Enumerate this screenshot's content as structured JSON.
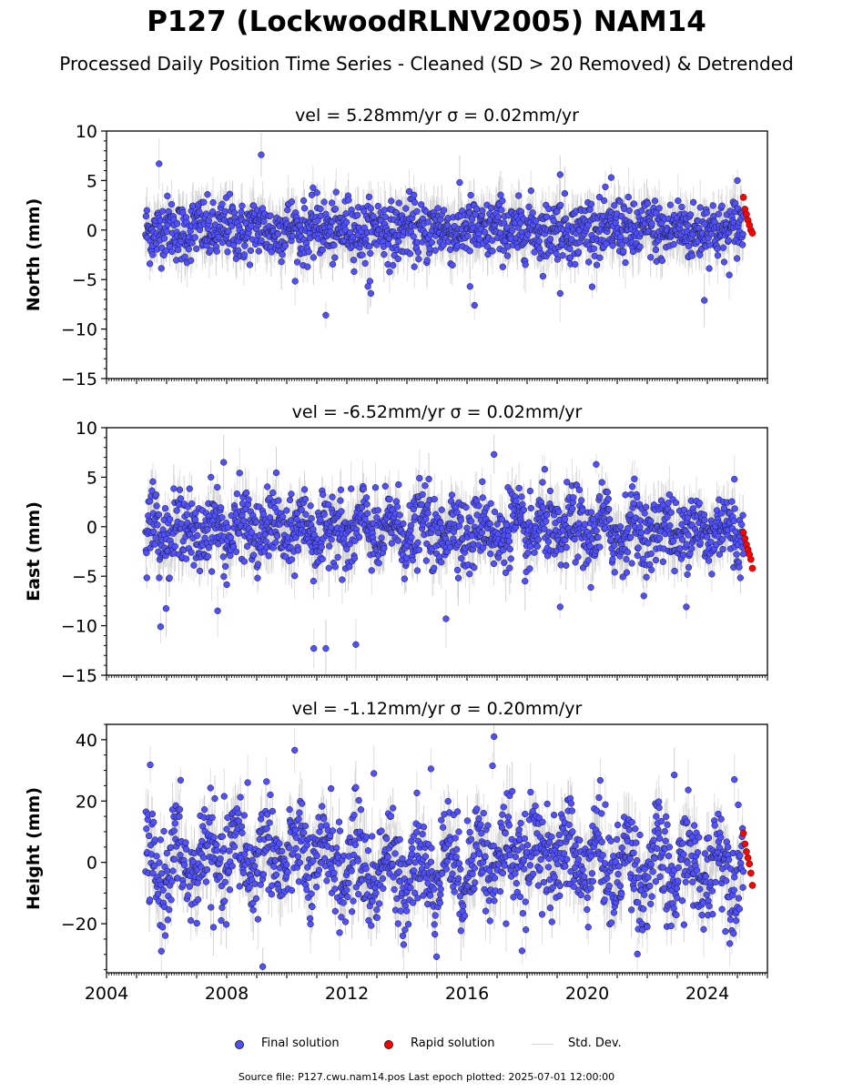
{
  "title": "P127 (LockwoodRLNV2005) NAM14",
  "subtitle": "Processed Daily Position Time Series - Cleaned (SD > 20 Removed) & Detrended",
  "legend": {
    "final": "Final solution",
    "rapid": "Rapid solution",
    "std": "Std. Dev."
  },
  "source": "Source file: P127.cwu.nam14.pos  Last epoch plotted: 2025-07-01 12:00:00",
  "colors": {
    "final": "#5050ff",
    "rapid": "#ff0000",
    "std": "#d3d3d3"
  },
  "chart_data": [
    {
      "type": "scatter",
      "title": "vel = 5.28mm/yr   σ = 0.02mm/yr",
      "ylabel": "North (mm)",
      "xlim": [
        2004.0,
        2026.0
      ],
      "ylim": [
        -15,
        10
      ],
      "yticks": [
        -15,
        -10,
        -5,
        0,
        5,
        10
      ],
      "xticks": [
        2004,
        2008,
        2012,
        2016,
        2020,
        2024
      ],
      "series": [
        {
          "name": "Final solution",
          "x_range": [
            2005.3,
            2025.2
          ],
          "typical_spread": 1.5,
          "outliers": [
            [
              2005.75,
              6.7
            ],
            [
              2009.15,
              7.6
            ],
            [
              2011.3,
              -8.6
            ],
            [
              2012.8,
              -6.4
            ],
            [
              2012.7,
              -5.7
            ],
            [
              2016.1,
              -5.7
            ],
            [
              2016.25,
              -7.6
            ],
            [
              2019.1,
              5.6
            ],
            [
              2019.1,
              -6.4
            ],
            [
              2020.8,
              5.3
            ],
            [
              2023.9,
              -7.1
            ],
            [
              2025.0,
              5.0
            ]
          ]
        },
        {
          "name": "Rapid solution",
          "x_range": [
            2025.2,
            2025.5
          ],
          "values": [
            3.3,
            2.1,
            1.6,
            1.0,
            0.5,
            0.0,
            -0.3
          ]
        }
      ]
    },
    {
      "type": "scatter",
      "title": "vel = -6.52mm/yr   σ = 0.02mm/yr",
      "ylabel": "East (mm)",
      "xlim": [
        2004.0,
        2026.0
      ],
      "ylim": [
        -15,
        10
      ],
      "yticks": [
        -15,
        -10,
        -5,
        0,
        5,
        10
      ],
      "xticks": [
        2004,
        2008,
        2012,
        2016,
        2020,
        2024
      ],
      "series": [
        {
          "name": "Final solution",
          "x_range": [
            2005.3,
            2025.2
          ],
          "typical_spread": 1.8,
          "outliers": [
            [
              2005.8,
              -10.1
            ],
            [
              2007.9,
              6.5
            ],
            [
              2007.7,
              -8.5
            ],
            [
              2010.9,
              -12.3
            ],
            [
              2011.3,
              -12.3
            ],
            [
              2012.3,
              -11.9
            ],
            [
              2015.3,
              -9.3
            ],
            [
              2016.9,
              7.3
            ],
            [
              2019.1,
              -8.1
            ],
            [
              2020.3,
              6.3
            ],
            [
              2023.3,
              -8.1
            ],
            [
              2024.9,
              4.8
            ]
          ]
        },
        {
          "name": "Rapid solution",
          "x_range": [
            2025.2,
            2025.5
          ],
          "values": [
            -0.6,
            -1.2,
            -1.8,
            -2.3,
            -2.8,
            -3.3,
            -4.2
          ]
        }
      ]
    },
    {
      "type": "scatter",
      "title": "vel = -1.12mm/yr   σ = 0.20mm/yr",
      "ylabel": "Height (mm)",
      "xlim": [
        2004.0,
        2026.0
      ],
      "ylim": [
        -36,
        45
      ],
      "yticks": [
        -20,
        0,
        20,
        40
      ],
      "xticks": [
        2004,
        2008,
        2012,
        2016,
        2020,
        2024
      ],
      "xticklabels": [
        "2004",
        "2008",
        "2012",
        "2016",
        "2020",
        "2024"
      ],
      "series": [
        {
          "name": "Final solution",
          "x_range": [
            2005.3,
            2025.2
          ],
          "typical_spread": 8,
          "outliers": [
            [
              2008.7,
              26.0
            ],
            [
              2009.2,
              -34.0
            ],
            [
              2012.9,
              29.0
            ],
            [
              2014.8,
              30.5
            ],
            [
              2016.9,
              41.0
            ],
            [
              2016.85,
              31.5
            ],
            [
              2017.3,
              -20.0
            ],
            [
              2022.9,
              28.5
            ],
            [
              2024.9,
              27.0
            ]
          ]
        },
        {
          "name": "Rapid solution",
          "x_range": [
            2025.2,
            2025.5
          ],
          "values": [
            9.5,
            6.0,
            3.5,
            1.5,
            -0.5,
            -3.5,
            -7.5
          ]
        }
      ]
    }
  ]
}
